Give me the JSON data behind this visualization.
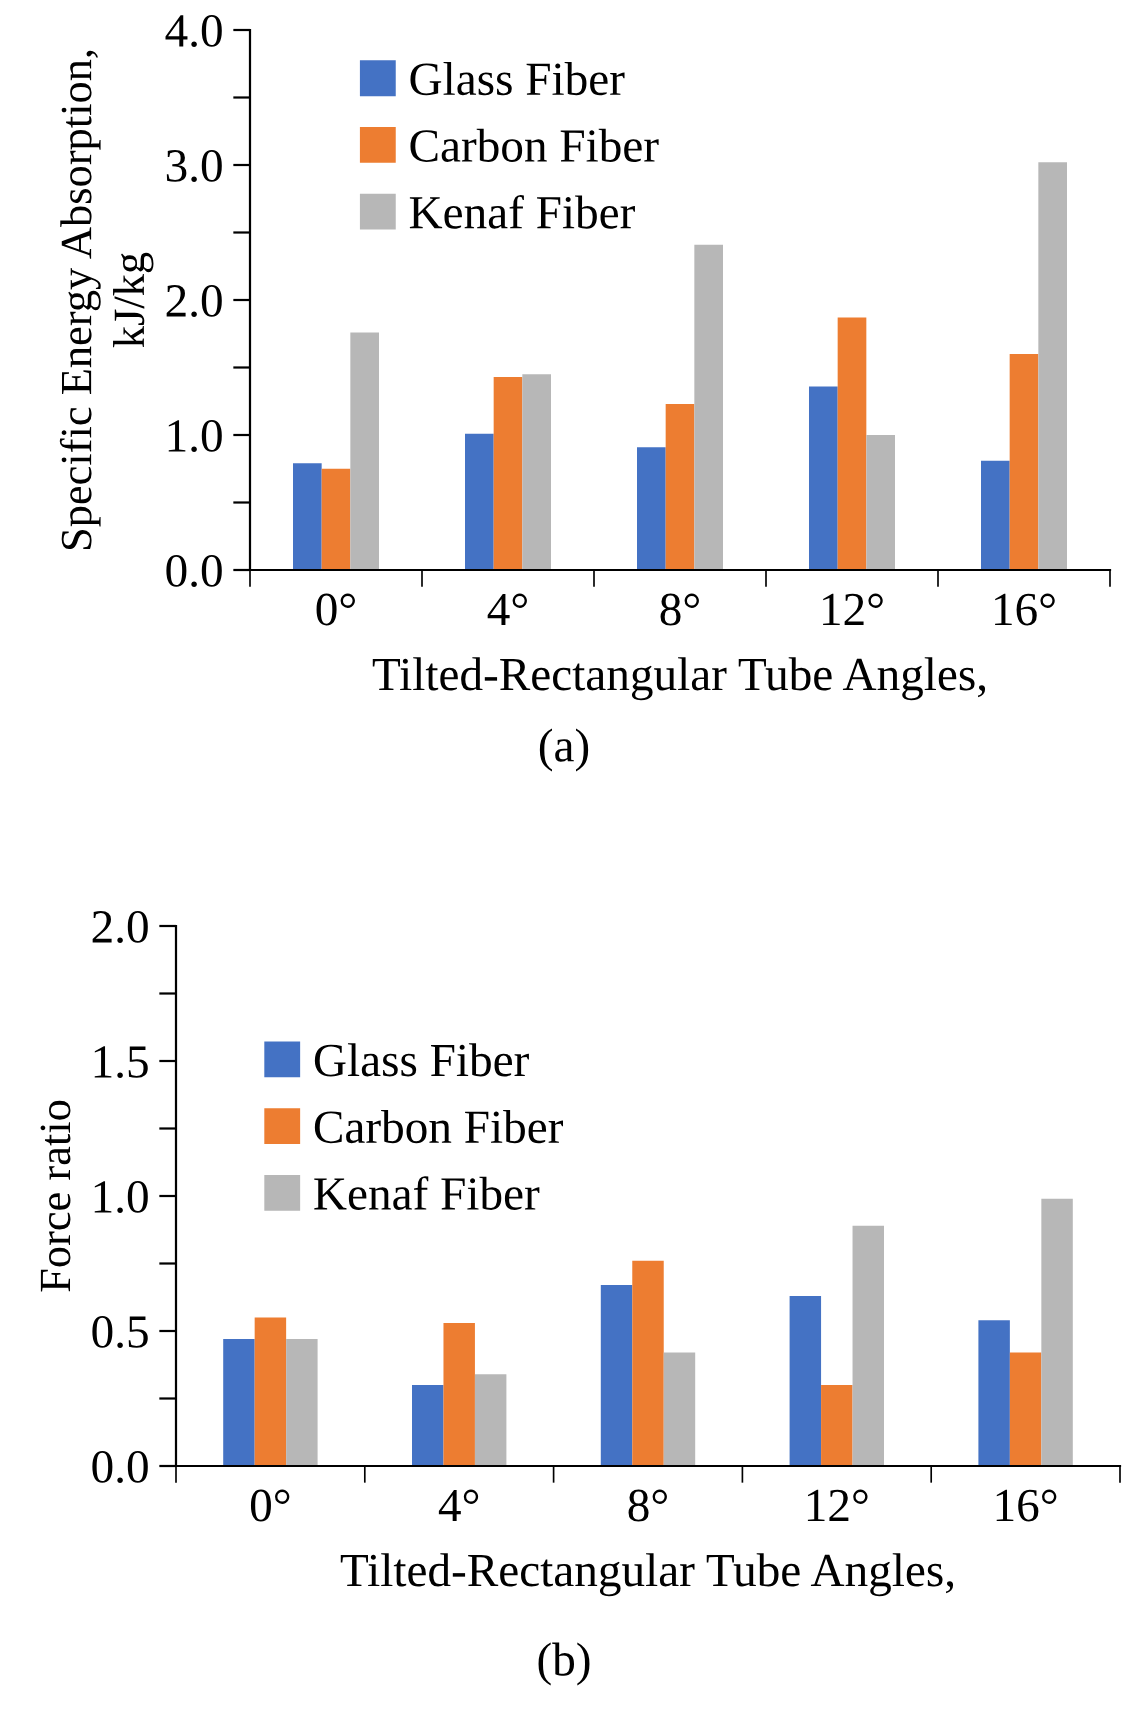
{
  "chart_data": [
    {
      "type": "bar",
      "categories": [
        "0°",
        "4°",
        "8°",
        "12°",
        "16°"
      ],
      "ylabel": "Specific Energy Absorption,\nkJ/kg",
      "xlabel": "Tilted-Rectangular Tube Angles,",
      "annotations": [
        "(a)"
      ],
      "series": [
        {
          "name": "Glass Fiber",
          "color": "#4472c4",
          "values": [
            0.79,
            1.01,
            0.91,
            1.36,
            0.81
          ]
        },
        {
          "name": "Carbon Fiber",
          "color": "#ed7d31",
          "values": [
            0.75,
            1.43,
            1.23,
            1.87,
            1.6
          ]
        },
        {
          "name": "Kenaf Fiber",
          "color": "#b7b7b7",
          "values": [
            1.76,
            1.45,
            2.41,
            1.0,
            3.02
          ]
        }
      ],
      "ylim": [
        0,
        4.0
      ],
      "yticks": [
        {
          "value": 0,
          "label": "0.0"
        },
        {
          "value": 0.5,
          "label": null
        },
        {
          "value": 1,
          "label": "1.0"
        },
        {
          "value": 1.5,
          "label": null
        },
        {
          "value": 2,
          "label": "2.0"
        },
        {
          "value": 2.5,
          "label": null
        },
        {
          "value": 3,
          "label": "3.0"
        },
        {
          "value": 3.5,
          "label": null
        },
        {
          "value": 4,
          "label": "4.0"
        }
      ],
      "grid": false,
      "legend": "top left"
    },
    {
      "type": "bar",
      "categories": [
        "0°",
        "4°",
        "8°",
        "12°",
        "16°"
      ],
      "ylabel": "Force ratio",
      "xlabel": "Tilted-Rectangular Tube Angles,",
      "annotations": [
        "(b)"
      ],
      "series": [
        {
          "name": "Glass Fiber",
          "color": "#4472c4",
          "values": [
            0.47,
            0.3,
            0.67,
            0.63,
            0.54
          ]
        },
        {
          "name": "Carbon Fiber",
          "color": "#ed7d31",
          "values": [
            0.55,
            0.53,
            0.76,
            0.3,
            0.42
          ]
        },
        {
          "name": "Kenaf Fiber",
          "color": "#b7b7b7",
          "values": [
            0.47,
            0.34,
            0.42,
            0.89,
            0.99
          ]
        }
      ],
      "ylim": [
        0,
        2.0
      ],
      "yticks": [
        {
          "value": 0,
          "label": "0.0"
        },
        {
          "value": 0.25,
          "label": null
        },
        {
          "value": 0.5,
          "label": "0.5"
        },
        {
          "value": 0.75,
          "label": null
        },
        {
          "value": 1,
          "label": "1.0"
        },
        {
          "value": 1.25,
          "label": null
        },
        {
          "value": 1.5,
          "label": "1.5"
        },
        {
          "value": 1.75,
          "label": null
        },
        {
          "value": 2,
          "label": "2.0"
        }
      ],
      "grid": false,
      "legend": "left"
    }
  ]
}
